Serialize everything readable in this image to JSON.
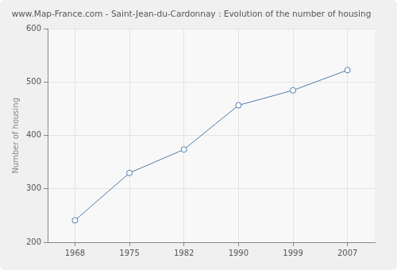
{
  "chart_data": {
    "type": "line",
    "title": "www.Map-France.com - Saint-Jean-du-Cardonnay : Evolution of the number of housing",
    "y_label": "Number of housing",
    "categories": [
      "1968",
      "1975",
      "1982",
      "1990",
      "1999",
      "2007"
    ],
    "values": [
      241,
      330,
      374,
      457,
      485,
      523
    ],
    "color": "#4f7cac",
    "marker": "circle",
    "line_style": "solid",
    "ylim": [
      200,
      600
    ],
    "yticks": [
      200,
      300,
      400,
      500,
      600
    ],
    "grid": true
  }
}
